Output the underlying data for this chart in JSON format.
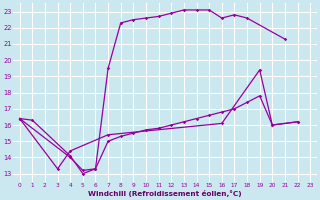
{
  "bg_color": "#cbe8f0",
  "line_color": "#990099",
  "grid_color": "#ffffff",
  "xlabel": "Windchill (Refroidissement éolien,°C)",
  "xlabel_color": "#660066",
  "xlim": [
    -0.5,
    23.5
  ],
  "ylim": [
    12.5,
    23.5
  ],
  "xticks": [
    0,
    1,
    2,
    3,
    4,
    5,
    6,
    7,
    8,
    9,
    10,
    11,
    12,
    13,
    14,
    15,
    16,
    17,
    18,
    19,
    20,
    21,
    22,
    23
  ],
  "yticks": [
    13,
    14,
    15,
    16,
    17,
    18,
    19,
    20,
    21,
    22,
    23
  ],
  "series": [
    {
      "x": [
        0,
        1,
        4,
        5,
        6,
        7,
        8,
        9,
        10,
        11,
        12,
        13,
        14,
        15,
        16,
        17,
        18,
        21
      ],
      "y": [
        16.4,
        16.3,
        14.1,
        13.0,
        13.3,
        19.5,
        22.3,
        22.5,
        22.6,
        22.7,
        22.9,
        23.1,
        23.1,
        23.1,
        22.6,
        22.8,
        22.6,
        21.3
      ]
    },
    {
      "x": [
        0,
        3,
        4,
        7,
        16,
        19,
        20,
        22
      ],
      "y": [
        16.4,
        13.3,
        14.4,
        15.4,
        16.1,
        19.4,
        16.0,
        16.2
      ]
    },
    {
      "x": [
        0,
        4,
        5,
        6,
        7,
        8,
        9,
        10,
        11,
        12,
        13,
        14,
        15,
        16,
        17,
        18,
        19,
        20,
        22
      ],
      "y": [
        16.4,
        14.0,
        13.2,
        13.3,
        15.0,
        15.3,
        15.5,
        15.7,
        15.8,
        16.0,
        16.2,
        16.4,
        16.6,
        16.8,
        17.0,
        17.4,
        17.8,
        16.0,
        16.2
      ]
    }
  ]
}
